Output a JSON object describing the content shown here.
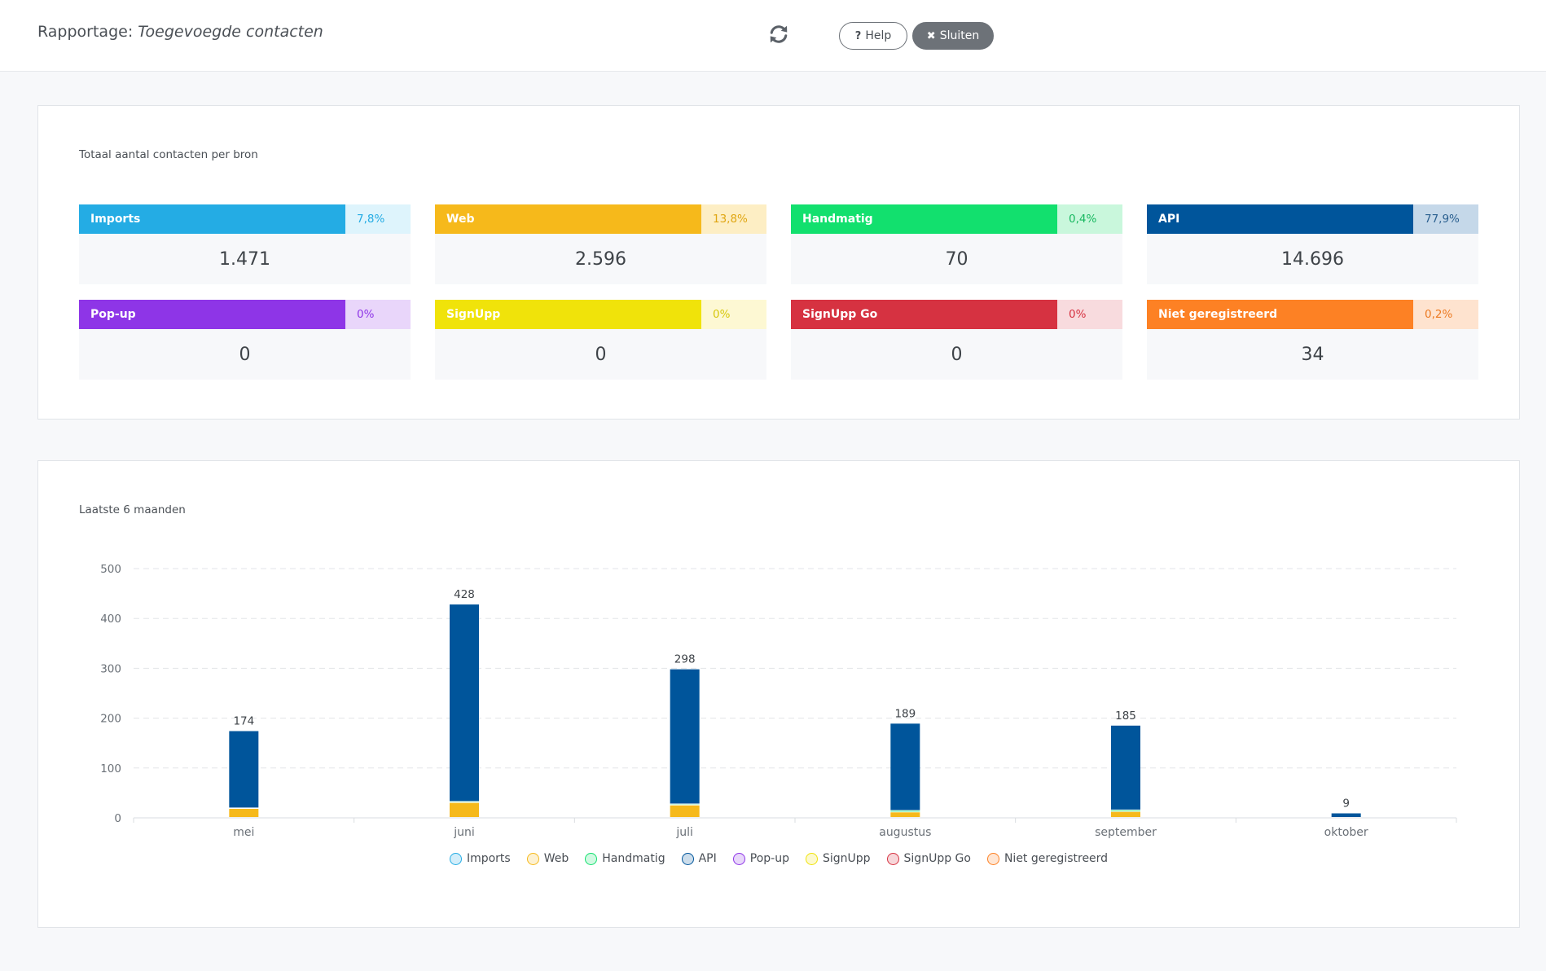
{
  "header": {
    "title_prefix": "Rapportage:",
    "title_subject": "Toegevoegde contacten",
    "refresh_icon": "refresh-icon",
    "help_label": "Help",
    "help_icon": "question-icon",
    "close_label": "Sluiten",
    "close_icon": "close-icon"
  },
  "summary": {
    "heading": "Totaal aantal contacten per bron",
    "cards": [
      {
        "label": "Imports",
        "percent": "7,8%",
        "value": "1.471",
        "color": "#24ace4",
        "light": "#def4fc",
        "pct_text": "#24ace4"
      },
      {
        "label": "Web",
        "percent": "13,8%",
        "value": "2.596",
        "color": "#f6b91b",
        "light": "#fdeec4",
        "pct_text": "#e0a612"
      },
      {
        "label": "Handmatig",
        "percent": "0,4%",
        "value": "70",
        "color": "#12e06e",
        "light": "#c9f7dc",
        "pct_text": "#18b860"
      },
      {
        "label": "API",
        "percent": "77,9%",
        "value": "14.696",
        "color": "#00559b",
        "light": "#c5d8e9",
        "pct_text": "#2a5f8f"
      },
      {
        "label": "Pop-up",
        "percent": "0%",
        "value": "0",
        "color": "#8e35e7",
        "light": "#e9d6fa",
        "pct_text": "#8e35e7"
      },
      {
        "label": "SignUpp",
        "percent": "0%",
        "value": "0",
        "color": "#f0e30a",
        "light": "#fdf8d3",
        "pct_text": "#d7c70a"
      },
      {
        "label": "SignUpp Go",
        "percent": "0%",
        "value": "0",
        "color": "#d63241",
        "light": "#f8dbde",
        "pct_text": "#d63241"
      },
      {
        "label": "Niet geregistreerd",
        "percent": "0,2%",
        "value": "34",
        "color": "#fd8124",
        "light": "#fee3cf",
        "pct_text": "#ec7a22"
      }
    ]
  },
  "monthly": {
    "heading": "Laatste 6 maanden",
    "chart_data": {
      "type": "bar",
      "stacked": true,
      "categories": [
        "mei",
        "juni",
        "juli",
        "augustus",
        "september",
        "oktober"
      ],
      "ylim": [
        0,
        500
      ],
      "yticks": [
        0,
        100,
        200,
        300,
        400,
        500
      ],
      "grid": true,
      "legend_position": "bottom",
      "series": [
        {
          "name": "Imports",
          "color": "#24ace4",
          "values": [
            0,
            0,
            0,
            0,
            0,
            0
          ]
        },
        {
          "name": "Web",
          "color": "#f6b91b",
          "values": [
            18,
            30,
            25,
            11,
            12,
            0
          ]
        },
        {
          "name": "Handmatig",
          "color": "#12e06e",
          "values": [
            1,
            2,
            2,
            3,
            3,
            0
          ]
        },
        {
          "name": "API",
          "color": "#00559b",
          "values": [
            155,
            396,
            271,
            175,
            170,
            9
          ]
        },
        {
          "name": "Pop-up",
          "color": "#8e35e7",
          "values": [
            0,
            0,
            0,
            0,
            0,
            0
          ]
        },
        {
          "name": "SignUpp",
          "color": "#f0e30a",
          "values": [
            0,
            0,
            0,
            0,
            0,
            0
          ]
        },
        {
          "name": "SignUpp Go",
          "color": "#d63241",
          "values": [
            0,
            0,
            0,
            0,
            0,
            0
          ]
        },
        {
          "name": "Niet geregistreerd",
          "color": "#fd8124",
          "values": [
            0,
            0,
            0,
            0,
            0,
            0
          ]
        }
      ],
      "totals": [
        174,
        428,
        298,
        189,
        185,
        9
      ]
    }
  }
}
